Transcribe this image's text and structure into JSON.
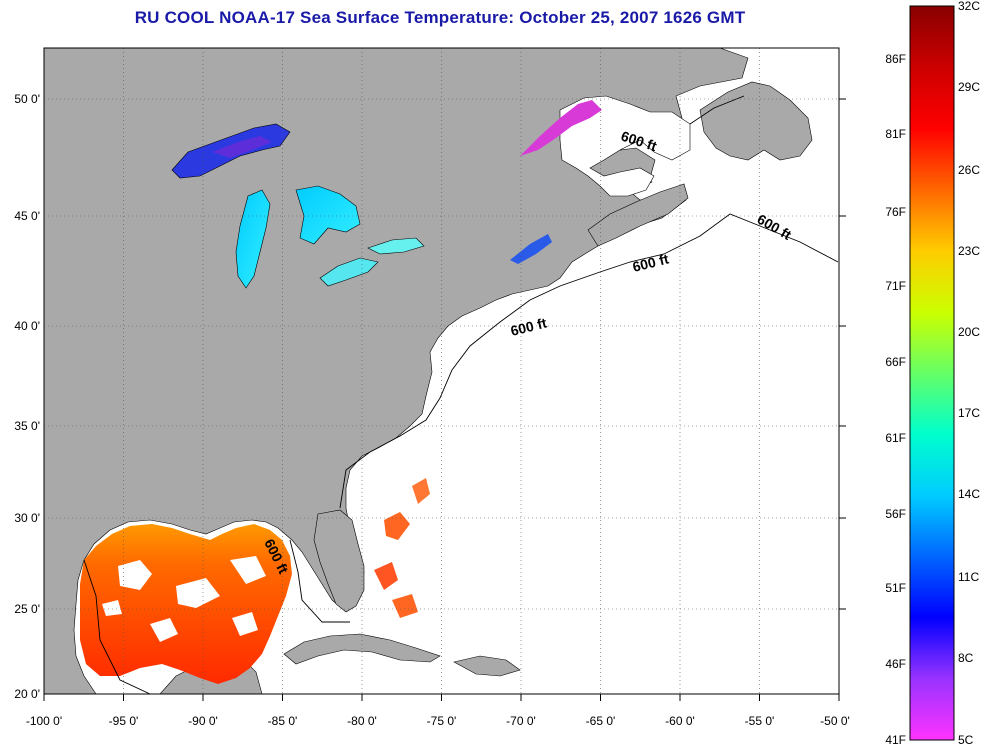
{
  "title": "RU COOL  NOAA-17  Sea Surface Temperature:  October 25, 2007 1626 GMT",
  "map": {
    "lon_range": [
      -100,
      -50
    ],
    "lat_range": [
      20,
      52.5
    ],
    "lon_ticks": [
      "-100 0'",
      "-95 0'",
      "-90 0'",
      "-85 0'",
      "-80 0'",
      "-75 0'",
      "-70 0'",
      "-65 0'",
      "-60 0'",
      "-55 0'",
      "-50 0'"
    ],
    "lat_ticks": [
      "20 0'",
      "25 0'",
      "30 0'",
      "35 0'",
      "40 0'",
      "45 0'",
      "50 0'"
    ],
    "depth_contour_label": "600 ft",
    "land_color": "#a9a9a9",
    "ocean_nodata_color": "#ffffff",
    "grid": "dotted"
  },
  "colorbar": {
    "fahrenheit_labels": [
      "86F",
      "81F",
      "76F",
      "71F",
      "66F",
      "61F",
      "56F",
      "51F",
      "46F",
      "41F"
    ],
    "celsius_labels": [
      "32C",
      "29C",
      "26C",
      "23C",
      "20C",
      "17C",
      "14C",
      "11C",
      "8C",
      "5C"
    ],
    "range_celsius": [
      5,
      32
    ],
    "gradient": [
      "#ff33ff",
      "#9933ff",
      "#0000ff",
      "#0066ff",
      "#00ccff",
      "#00ffcc",
      "#66ff66",
      "#ccff00",
      "#ffcc00",
      "#ff6600",
      "#ff0000",
      "#cc0000",
      "#880000"
    ]
  }
}
